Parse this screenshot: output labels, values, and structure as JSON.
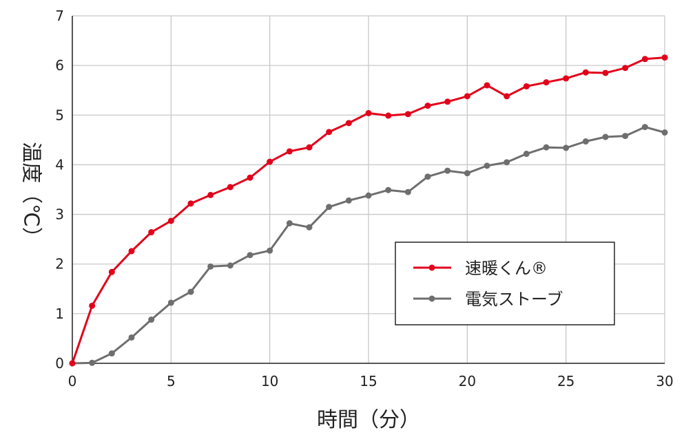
{
  "chart_data": {
    "type": "line",
    "xlabel": "時間（分）",
    "ylabel": "温度（℃）",
    "xlim": [
      0,
      30
    ],
    "ylim": [
      0,
      7
    ],
    "xticks": [
      0,
      5,
      10,
      15,
      20,
      25,
      30
    ],
    "yticks": [
      0,
      1,
      2,
      3,
      4,
      5,
      6,
      7
    ],
    "grid": true,
    "legend_position": "center-right",
    "x": [
      0,
      1,
      2,
      3,
      4,
      5,
      6,
      7,
      8,
      9,
      10,
      11,
      12,
      13,
      14,
      15,
      16,
      17,
      18,
      19,
      20,
      21,
      22,
      23,
      24,
      25,
      26,
      27,
      28,
      29,
      30
    ],
    "series": [
      {
        "name": "速暖くん®",
        "color": "#e2001a",
        "values": [
          0,
          1.16,
          1.84,
          2.26,
          2.64,
          2.87,
          3.22,
          3.39,
          3.55,
          3.74,
          4.06,
          4.27,
          4.35,
          4.66,
          4.84,
          5.04,
          4.99,
          5.02,
          5.19,
          5.27,
          5.38,
          5.6,
          5.38,
          5.58,
          5.66,
          5.74,
          5.86,
          5.85,
          5.95,
          6.13,
          6.16
        ]
      },
      {
        "name": "電気ストーブ",
        "color": "#6e6e6e",
        "values": [
          0,
          0.01,
          0.2,
          0.52,
          0.88,
          1.22,
          1.44,
          1.95,
          1.97,
          2.18,
          2.27,
          2.82,
          2.74,
          3.15,
          3.28,
          3.38,
          3.49,
          3.45,
          3.76,
          3.88,
          3.83,
          3.98,
          4.05,
          4.22,
          4.35,
          4.34,
          4.47,
          4.56,
          4.58,
          4.76,
          4.65
        ]
      }
    ]
  }
}
